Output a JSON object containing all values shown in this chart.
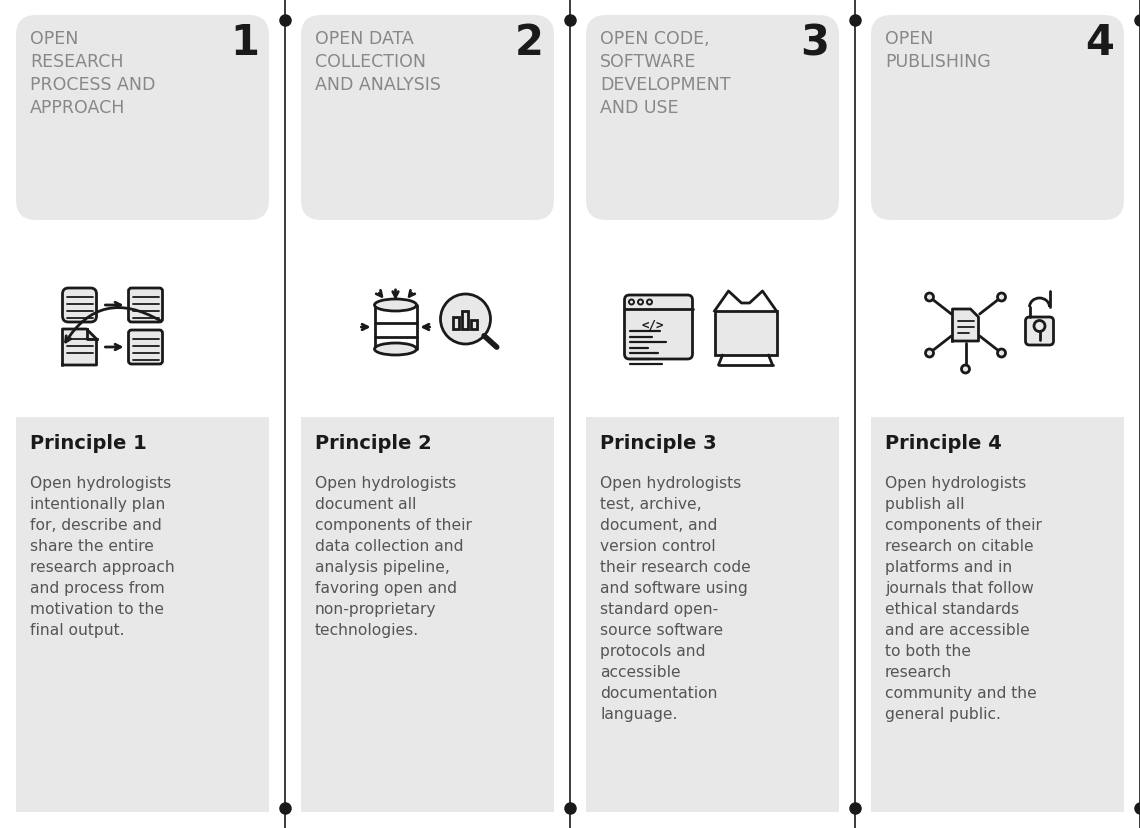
{
  "bg_color": "#ffffff",
  "card_bg": "#e8e8e8",
  "line_color": "#1a1a1a",
  "text_color_title": "#888888",
  "text_color_body": "#555555",
  "text_color_principle_label": "#1a1a1a",
  "text_color_number": "#1a1a1a",
  "principles": [
    {
      "number": "1",
      "title": "OPEN\nRESEARCH\nPROCESS AND\nAPPROACH",
      "principle_label": "Principle 1",
      "body": "Open hydrologists\nintentionally plan\nfor, describe and\nshare the entire\nresearch approach\nand process from\nmotivation to the\nfinal output."
    },
    {
      "number": "2",
      "title": "OPEN DATA\nCOLLECTION\nAND ANALYSIS",
      "principle_label": "Principle 2",
      "body": "Open hydrologists\ndocument all\ncomponents of their\ndata collection and\nanalysis pipeline,\nfavoring open and\nnon-proprietary\ntechnologies."
    },
    {
      "number": "3",
      "title": "OPEN CODE,\nSOFTWARE\nDEVELOPMENT\nAND USE",
      "principle_label": "Principle 3",
      "body": "Open hydrologists\ntest, archive,\ndocument, and\nversion control\ntheir research code\nand software using\nstandard open-\nsource software\nprotocols and\naccessible\ndocumentation\nlanguage."
    },
    {
      "number": "4",
      "title": "OPEN\nPUBLISHING",
      "principle_label": "Principle 4",
      "body": "Open hydrologists\npublish all\ncomponents of their\nresearch on citable\nplatforms and in\njournals that follow\nethical standards\nand are accessible\nto both the\nresearch\ncommunity and the\ngeneral public."
    }
  ],
  "figsize": [
    11.4,
    8.29
  ],
  "dpi": 100
}
